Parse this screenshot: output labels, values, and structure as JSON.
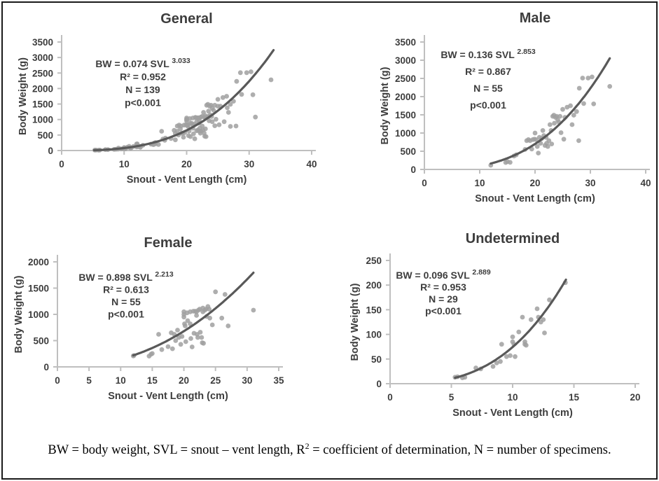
{
  "figure": {
    "background": "#ffffff",
    "border_color": "#1a1a1a"
  },
  "styles": {
    "point_color": "#a0a0a0",
    "curve_color": "#595959",
    "axis_color": "#bfbfbf",
    "text_color": "#3d3d3d"
  },
  "footer": {
    "prefix": "BW = body weight, SVL = snout – vent length, R",
    "sup": "2",
    "suffix": " = coefficient of determination, N = number of specimens."
  },
  "chart_data": [
    {
      "id": "general",
      "type": "scatter",
      "title": "General",
      "xlabel": "Snout - Vent Length (cm)",
      "ylabel": "Body Weight (g)",
      "xlim": [
        0,
        40
      ],
      "ylim": [
        0,
        3500
      ],
      "xticks": [
        0,
        10,
        20,
        30,
        40
      ],
      "yticks": [
        0,
        500,
        1000,
        1500,
        2000,
        2500,
        3000,
        3500
      ],
      "grid": false,
      "legend": false,
      "annotation": {
        "equation_base": "BW = 0.074 SVL",
        "exponent": "3.033",
        "r_squared": "R² = 0.952",
        "n": "N = 139",
        "p_value": "p<0.001"
      },
      "trendline": {
        "a": 0.074,
        "b": 3.033,
        "x_start": 5.2,
        "x_end": 33.9
      },
      "points": [
        [
          12,
          115
        ],
        [
          14.7,
          190
        ],
        [
          15,
          215
        ],
        [
          15.5,
          195
        ],
        [
          16.2,
          370
        ],
        [
          16.6,
          400
        ],
        [
          18.2,
          550
        ],
        [
          18.5,
          790
        ],
        [
          18.8,
          820
        ],
        [
          19.1,
          790
        ],
        [
          19.4,
          560
        ],
        [
          19.6,
          820
        ],
        [
          19.9,
          830
        ],
        [
          20,
          1000
        ],
        [
          20.2,
          820
        ],
        [
          20.4,
          630
        ],
        [
          20.6,
          450
        ],
        [
          20.8,
          880
        ],
        [
          21,
          720
        ],
        [
          21.2,
          850
        ],
        [
          21.4,
          1070
        ],
        [
          21.6,
          930
        ],
        [
          21.8,
          660
        ],
        [
          22,
          880
        ],
        [
          22.1,
          720
        ],
        [
          22.3,
          630
        ],
        [
          22.5,
          790
        ],
        [
          22.7,
          1230
        ],
        [
          22.9,
          1070
        ],
        [
          23,
          700
        ],
        [
          23.2,
          1460
        ],
        [
          23.4,
          1490
        ],
        [
          23.5,
          1270
        ],
        [
          23.7,
          1430
        ],
        [
          23.9,
          1460
        ],
        [
          24.1,
          1360
        ],
        [
          24.3,
          1300
        ],
        [
          24.5,
          1460
        ],
        [
          24.7,
          1010
        ],
        [
          25,
          1650
        ],
        [
          25.2,
          830
        ],
        [
          25.4,
          1430
        ],
        [
          25.8,
          1710
        ],
        [
          26.4,
          1750
        ],
        [
          26.7,
          1230
        ],
        [
          27,
          1490
        ],
        [
          27.5,
          1590
        ],
        [
          27.9,
          790
        ],
        [
          28,
          2230
        ],
        [
          28.6,
          2510
        ],
        [
          28.8,
          1810
        ],
        [
          29.6,
          2510
        ],
        [
          30.3,
          2540
        ],
        [
          30.6,
          1800
        ],
        [
          33.5,
          2280
        ],
        [
          12,
          210
        ],
        [
          12.1,
          215
        ],
        [
          14.5,
          205
        ],
        [
          14.8,
          240
        ],
        [
          15,
          255
        ],
        [
          16,
          620
        ],
        [
          16.5,
          330
        ],
        [
          17.5,
          385
        ],
        [
          18,
          650
        ],
        [
          18.2,
          345
        ],
        [
          18.5,
          620
        ],
        [
          18.7,
          500
        ],
        [
          19,
          700
        ],
        [
          19.2,
          560
        ],
        [
          19.5,
          430
        ],
        [
          19.7,
          580
        ],
        [
          20,
          1050
        ],
        [
          20,
          1000
        ],
        [
          20,
          950
        ],
        [
          20.1,
          820
        ],
        [
          20.2,
          780
        ],
        [
          20.3,
          480
        ],
        [
          20.5,
          1030
        ],
        [
          20.6,
          880
        ],
        [
          21,
          1050
        ],
        [
          21,
          820
        ],
        [
          21.1,
          540
        ],
        [
          21.3,
          380
        ],
        [
          21.5,
          1060
        ],
        [
          21.6,
          640
        ],
        [
          21.8,
          1060
        ],
        [
          22,
          1050
        ],
        [
          22,
          980
        ],
        [
          22.1,
          620
        ],
        [
          22.2,
          560
        ],
        [
          22.3,
          1080
        ],
        [
          22.5,
          1100
        ],
        [
          22.6,
          660
        ],
        [
          22.8,
          560
        ],
        [
          22.9,
          460
        ],
        [
          23,
          1120
        ],
        [
          23,
          1050
        ],
        [
          23.1,
          450
        ],
        [
          23.3,
          1080
        ],
        [
          23.5,
          1100
        ],
        [
          23.6,
          960
        ],
        [
          23.8,
          1150
        ],
        [
          24,
          1100
        ],
        [
          24.1,
          930
        ],
        [
          24.5,
          800
        ],
        [
          25,
          1430
        ],
        [
          26,
          930
        ],
        [
          26.5,
          1380
        ],
        [
          27,
          780
        ],
        [
          31,
          1080
        ],
        [
          5.3,
          13
        ],
        [
          5.5,
          14
        ],
        [
          5.9,
          12
        ],
        [
          6.1,
          13
        ],
        [
          7,
          32
        ],
        [
          7.4,
          30
        ],
        [
          8.4,
          35
        ],
        [
          8.7,
          42
        ],
        [
          9,
          45
        ],
        [
          9.1,
          80
        ],
        [
          9.5,
          55
        ],
        [
          9.8,
          57
        ],
        [
          10,
          95
        ],
        [
          10,
          85
        ],
        [
          10.1,
          80
        ],
        [
          10.2,
          55
        ],
        [
          10.5,
          105
        ],
        [
          10.8,
          135
        ],
        [
          11,
          85
        ],
        [
          11,
          80
        ],
        [
          11.1,
          78
        ],
        [
          11.5,
          130
        ],
        [
          12,
          152
        ],
        [
          12.1,
          135
        ],
        [
          12.3,
          125
        ],
        [
          12.5,
          130
        ],
        [
          12.6,
          103
        ],
        [
          13,
          170
        ],
        [
          14.3,
          205
        ]
      ]
    },
    {
      "id": "male",
      "type": "scatter",
      "title": "Male",
      "xlabel": "Snout - Vent Length (cm)",
      "ylabel": "Body Weight (g)",
      "xlim": [
        0,
        40
      ],
      "ylim": [
        0,
        3500
      ],
      "xticks": [
        0,
        10,
        20,
        30,
        40
      ],
      "yticks": [
        0,
        500,
        1000,
        1500,
        2000,
        2500,
        3000,
        3500
      ],
      "grid": false,
      "legend": false,
      "annotation": {
        "equation_base": "BW = 0.136 SVL",
        "exponent": "2.853",
        "r_squared": "R² = 0.867",
        "n": "N = 55",
        "p_value": "p<0.001"
      },
      "trendline": {
        "a": 0.136,
        "b": 2.853,
        "x_start": 12,
        "x_end": 33.5
      },
      "points": [
        [
          12,
          115
        ],
        [
          14.7,
          190
        ],
        [
          15,
          215
        ],
        [
          15.5,
          195
        ],
        [
          16.2,
          370
        ],
        [
          16.6,
          400
        ],
        [
          18.2,
          550
        ],
        [
          18.5,
          790
        ],
        [
          18.8,
          820
        ],
        [
          19.1,
          790
        ],
        [
          19.4,
          560
        ],
        [
          19.6,
          820
        ],
        [
          19.9,
          830
        ],
        [
          20,
          1000
        ],
        [
          20.2,
          820
        ],
        [
          20.4,
          630
        ],
        [
          20.6,
          450
        ],
        [
          20.8,
          880
        ],
        [
          21,
          720
        ],
        [
          21.2,
          850
        ],
        [
          21.4,
          1070
        ],
        [
          21.6,
          930
        ],
        [
          21.8,
          660
        ],
        [
          22,
          880
        ],
        [
          22.1,
          720
        ],
        [
          22.3,
          630
        ],
        [
          22.5,
          790
        ],
        [
          22.7,
          1230
        ],
        [
          22.9,
          1070
        ],
        [
          23,
          700
        ],
        [
          23.2,
          1460
        ],
        [
          23.4,
          1490
        ],
        [
          23.5,
          1270
        ],
        [
          23.7,
          1430
        ],
        [
          23.9,
          1460
        ],
        [
          24.1,
          1360
        ],
        [
          24.3,
          1300
        ],
        [
          24.5,
          1460
        ],
        [
          24.7,
          1010
        ],
        [
          25,
          1650
        ],
        [
          25.2,
          830
        ],
        [
          25.4,
          1430
        ],
        [
          25.8,
          1710
        ],
        [
          26.4,
          1750
        ],
        [
          26.7,
          1230
        ],
        [
          27,
          1490
        ],
        [
          27.5,
          1590
        ],
        [
          27.9,
          790
        ],
        [
          28,
          2230
        ],
        [
          28.6,
          2510
        ],
        [
          28.8,
          1810
        ],
        [
          29.6,
          2510
        ],
        [
          30.3,
          2540
        ],
        [
          30.6,
          1800
        ],
        [
          33.5,
          2280
        ]
      ]
    },
    {
      "id": "female",
      "type": "scatter",
      "title": "Female",
      "xlabel": "Snout - Vent Length (cm)",
      "ylabel": "Body Weight (g)",
      "xlim": [
        0,
        35
      ],
      "ylim": [
        0,
        2000
      ],
      "xticks": [
        0,
        5,
        10,
        15,
        20,
        25,
        30,
        35
      ],
      "yticks": [
        0,
        500,
        1000,
        1500,
        2000
      ],
      "grid": false,
      "legend": false,
      "annotation": {
        "equation_base": "BW = 0.898 SVL",
        "exponent": "2.213",
        "r_squared": "R² = 0.613",
        "n": "N = 55",
        "p_value": "p<0.001"
      },
      "trendline": {
        "a": 0.898,
        "b": 2.213,
        "x_start": 12,
        "x_end": 31
      },
      "points": [
        [
          12,
          210
        ],
        [
          12.1,
          215
        ],
        [
          14.5,
          205
        ],
        [
          14.8,
          240
        ],
        [
          15,
          255
        ],
        [
          16,
          620
        ],
        [
          16.5,
          330
        ],
        [
          17.5,
          385
        ],
        [
          18,
          650
        ],
        [
          18.2,
          345
        ],
        [
          18.5,
          620
        ],
        [
          18.7,
          500
        ],
        [
          19,
          700
        ],
        [
          19.2,
          560
        ],
        [
          19.5,
          430
        ],
        [
          19.7,
          580
        ],
        [
          20,
          1050
        ],
        [
          20,
          1000
        ],
        [
          20,
          950
        ],
        [
          20.1,
          820
        ],
        [
          20.2,
          780
        ],
        [
          20.3,
          480
        ],
        [
          20.5,
          1030
        ],
        [
          20.6,
          880
        ],
        [
          21,
          1050
        ],
        [
          21,
          820
        ],
        [
          21.1,
          540
        ],
        [
          21.3,
          380
        ],
        [
          21.5,
          1060
        ],
        [
          21.6,
          640
        ],
        [
          21.8,
          1060
        ],
        [
          22,
          1050
        ],
        [
          22,
          980
        ],
        [
          22.1,
          620
        ],
        [
          22.2,
          560
        ],
        [
          22.3,
          1080
        ],
        [
          22.5,
          1100
        ],
        [
          22.6,
          660
        ],
        [
          22.8,
          560
        ],
        [
          22.9,
          460
        ],
        [
          23,
          1120
        ],
        [
          23,
          1050
        ],
        [
          23.1,
          450
        ],
        [
          23.3,
          1080
        ],
        [
          23.5,
          1100
        ],
        [
          23.6,
          960
        ],
        [
          23.8,
          1150
        ],
        [
          24,
          1100
        ],
        [
          24.1,
          930
        ],
        [
          24.5,
          800
        ],
        [
          25,
          1430
        ],
        [
          26,
          930
        ],
        [
          26.5,
          1380
        ],
        [
          27,
          780
        ],
        [
          31,
          1080
        ]
      ]
    },
    {
      "id": "undetermined",
      "type": "scatter",
      "title": "Undetermined",
      "xlabel": "Snout - Vent Length (cm)",
      "ylabel": "Body Weight (g)",
      "xlim": [
        0,
        20
      ],
      "ylim": [
        0,
        250
      ],
      "xticks": [
        0,
        5,
        10,
        15,
        20
      ],
      "yticks": [
        0,
        50,
        100,
        150,
        200,
        250
      ],
      "grid": false,
      "legend": false,
      "annotation": {
        "equation_base": "BW = 0.096 SVL",
        "exponent": "2.889",
        "r_squared": "R² = 0.953",
        "n": "N = 29",
        "p_value": "p<0.001"
      },
      "trendline": {
        "a": 0.096,
        "b": 2.889,
        "x_start": 5.3,
        "x_end": 14.35
      },
      "points": [
        [
          5.3,
          13
        ],
        [
          5.5,
          14
        ],
        [
          5.9,
          12
        ],
        [
          6.1,
          13
        ],
        [
          7,
          32
        ],
        [
          7.4,
          30
        ],
        [
          8.4,
          35
        ],
        [
          8.7,
          42
        ],
        [
          9,
          45
        ],
        [
          9.1,
          80
        ],
        [
          9.5,
          55
        ],
        [
          9.8,
          57
        ],
        [
          10,
          95
        ],
        [
          10,
          85
        ],
        [
          10.1,
          80
        ],
        [
          10.2,
          55
        ],
        [
          10.5,
          105
        ],
        [
          10.8,
          135
        ],
        [
          11,
          85
        ],
        [
          11,
          80
        ],
        [
          11.1,
          78
        ],
        [
          11.5,
          130
        ],
        [
          12,
          152
        ],
        [
          12.1,
          135
        ],
        [
          12.3,
          125
        ],
        [
          12.5,
          130
        ],
        [
          12.6,
          103
        ],
        [
          13,
          170
        ],
        [
          14.3,
          205
        ]
      ]
    }
  ]
}
